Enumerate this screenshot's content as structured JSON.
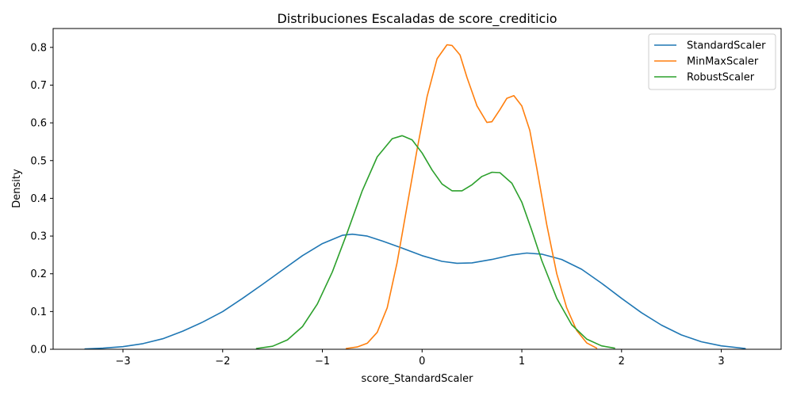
{
  "chart_data": {
    "type": "line",
    "title": "Distribuciones Escaladas de score_crediticio",
    "xlabel": "score_StandardScaler",
    "ylabel": "Density",
    "xlim": [
      -3.7,
      3.6
    ],
    "ylim": [
      0,
      0.85
    ],
    "xticks": [
      -3,
      -2,
      -1,
      0,
      1,
      2,
      3
    ],
    "xtick_labels": [
      "−3",
      "−2",
      "−1",
      "0",
      "1",
      "2",
      "3"
    ],
    "yticks": [
      0,
      0.1,
      0.2,
      0.3,
      0.4,
      0.5,
      0.6,
      0.7,
      0.8
    ],
    "ytick_labels": [
      "0.0",
      "0.1",
      "0.2",
      "0.3",
      "0.4",
      "0.5",
      "0.6",
      "0.7",
      "0.8"
    ],
    "grid": false,
    "legend_position": "top-right",
    "series": [
      {
        "name": "StandardScaler",
        "color": "#1f77b4",
        "points": [
          [
            -3.38,
            0.001
          ],
          [
            -3.2,
            0.003
          ],
          [
            -3.0,
            0.007
          ],
          [
            -2.8,
            0.015
          ],
          [
            -2.6,
            0.028
          ],
          [
            -2.4,
            0.048
          ],
          [
            -2.2,
            0.072
          ],
          [
            -2.0,
            0.1
          ],
          [
            -1.8,
            0.135
          ],
          [
            -1.6,
            0.172
          ],
          [
            -1.4,
            0.21
          ],
          [
            -1.2,
            0.248
          ],
          [
            -1.0,
            0.28
          ],
          [
            -0.8,
            0.302
          ],
          [
            -0.7,
            0.305
          ],
          [
            -0.55,
            0.3
          ],
          [
            -0.4,
            0.287
          ],
          [
            -0.2,
            0.268
          ],
          [
            0.0,
            0.248
          ],
          [
            0.2,
            0.233
          ],
          [
            0.35,
            0.228
          ],
          [
            0.5,
            0.229
          ],
          [
            0.7,
            0.238
          ],
          [
            0.9,
            0.25
          ],
          [
            1.05,
            0.255
          ],
          [
            1.2,
            0.252
          ],
          [
            1.4,
            0.238
          ],
          [
            1.6,
            0.212
          ],
          [
            1.8,
            0.175
          ],
          [
            2.0,
            0.135
          ],
          [
            2.2,
            0.097
          ],
          [
            2.4,
            0.064
          ],
          [
            2.6,
            0.038
          ],
          [
            2.8,
            0.02
          ],
          [
            3.0,
            0.009
          ],
          [
            3.24,
            0.002
          ]
        ]
      },
      {
        "name": "MinMaxScaler",
        "color": "#ff7f0e",
        "points": [
          [
            -0.76,
            0.002
          ],
          [
            -0.65,
            0.006
          ],
          [
            -0.55,
            0.016
          ],
          [
            -0.45,
            0.045
          ],
          [
            -0.35,
            0.11
          ],
          [
            -0.25,
            0.23
          ],
          [
            -0.15,
            0.38
          ],
          [
            -0.05,
            0.53
          ],
          [
            0.05,
            0.67
          ],
          [
            0.15,
            0.77
          ],
          [
            0.25,
            0.807
          ],
          [
            0.3,
            0.805
          ],
          [
            0.38,
            0.78
          ],
          [
            0.45,
            0.72
          ],
          [
            0.55,
            0.645
          ],
          [
            0.65,
            0.601
          ],
          [
            0.7,
            0.603
          ],
          [
            0.78,
            0.635
          ],
          [
            0.85,
            0.665
          ],
          [
            0.92,
            0.672
          ],
          [
            1.0,
            0.645
          ],
          [
            1.08,
            0.58
          ],
          [
            1.15,
            0.48
          ],
          [
            1.25,
            0.33
          ],
          [
            1.35,
            0.2
          ],
          [
            1.45,
            0.11
          ],
          [
            1.55,
            0.05
          ],
          [
            1.65,
            0.017
          ],
          [
            1.75,
            0.003
          ]
        ]
      },
      {
        "name": "RobustScaler",
        "color": "#2ca02c",
        "points": [
          [
            -1.66,
            0.002
          ],
          [
            -1.5,
            0.008
          ],
          [
            -1.35,
            0.025
          ],
          [
            -1.2,
            0.06
          ],
          [
            -1.05,
            0.12
          ],
          [
            -0.9,
            0.205
          ],
          [
            -0.75,
            0.31
          ],
          [
            -0.6,
            0.42
          ],
          [
            -0.45,
            0.51
          ],
          [
            -0.3,
            0.558
          ],
          [
            -0.2,
            0.566
          ],
          [
            -0.1,
            0.555
          ],
          [
            0.0,
            0.52
          ],
          [
            0.1,
            0.475
          ],
          [
            0.2,
            0.438
          ],
          [
            0.3,
            0.42
          ],
          [
            0.4,
            0.42
          ],
          [
            0.5,
            0.436
          ],
          [
            0.6,
            0.458
          ],
          [
            0.7,
            0.469
          ],
          [
            0.78,
            0.468
          ],
          [
            0.9,
            0.44
          ],
          [
            1.0,
            0.39
          ],
          [
            1.1,
            0.315
          ],
          [
            1.2,
            0.235
          ],
          [
            1.35,
            0.135
          ],
          [
            1.5,
            0.065
          ],
          [
            1.65,
            0.027
          ],
          [
            1.8,
            0.009
          ],
          [
            1.93,
            0.003
          ]
        ]
      }
    ]
  }
}
